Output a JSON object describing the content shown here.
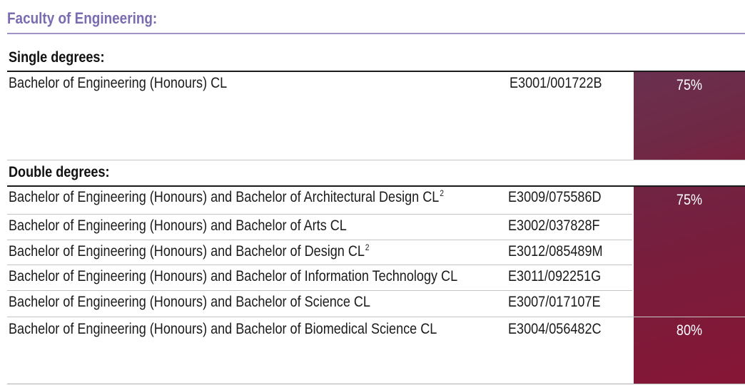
{
  "faculty_title": "Faculty of Engineering:",
  "single": {
    "heading": "Single degrees:",
    "rows": [
      {
        "name": "Bachelor of Engineering (Honours)  CL",
        "code": "E3001/001722B",
        "sup": ""
      }
    ],
    "score": "75%"
  },
  "double": {
    "heading": "Double degrees:",
    "rows": [
      {
        "name": "Bachelor of Engineering (Honours) and Bachelor of Architectural Design  CL",
        "sup": "2",
        "code": "E3009/075586D"
      },
      {
        "name": "Bachelor of Engineering (Honours) and Bachelor of Arts  CL",
        "sup": "",
        "code": "E3002/037828F"
      },
      {
        "name": "Bachelor of Engineering (Honours) and Bachelor of Design  CL",
        "sup": "2",
        "code": "E3012/085489M"
      },
      {
        "name": "Bachelor of Engineering (Honours) and Bachelor of Information Technology  CL",
        "sup": "",
        "code": "E3011/092251G"
      },
      {
        "name": "Bachelor of Engineering (Honours) and Bachelor of Science  CL",
        "sup": "",
        "code": "E3007/017107E"
      },
      {
        "name": "Bachelor of Engineering (Honours) and Bachelor of Biomedical Science  CL",
        "sup": "",
        "code": "E3004/056482C"
      }
    ],
    "score_group": "75%",
    "score_bio": "80%"
  }
}
